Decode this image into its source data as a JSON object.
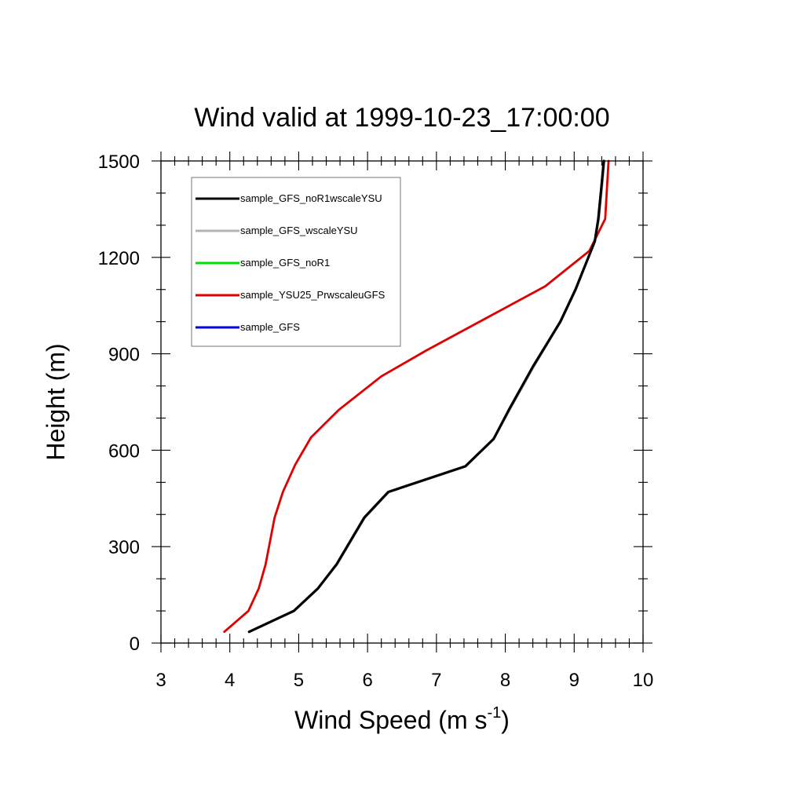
{
  "chart_data": {
    "type": "line",
    "title": "Wind valid at 1999-10-23_17:00:00",
    "xlabel": "Wind Speed (m s",
    "xlabel_sup": "-1",
    "xlabel_end": ")",
    "ylabel": "Height (m)",
    "xlim": [
      3,
      10
    ],
    "ylim": [
      0,
      1500
    ],
    "x_ticks": [
      "3",
      "4",
      "5",
      "6",
      "7",
      "8",
      "9",
      "10"
    ],
    "y_ticks": [
      "0",
      "300",
      "600",
      "900",
      "1200",
      "1500"
    ],
    "grid": false,
    "legend_position": "top-left",
    "series": [
      {
        "name": "sample_GFS_noR1wscaleYSU",
        "color": "#000000",
        "points": [
          [
            4.28,
            35
          ],
          [
            4.93,
            100
          ],
          [
            5.28,
            170
          ],
          [
            5.55,
            245
          ],
          [
            5.95,
            390
          ],
          [
            6.3,
            470
          ],
          [
            7.42,
            550
          ],
          [
            7.83,
            635
          ],
          [
            8.05,
            725
          ],
          [
            8.4,
            860
          ],
          [
            8.8,
            1000
          ],
          [
            9.02,
            1100
          ],
          [
            9.3,
            1250
          ],
          [
            9.35,
            1320
          ],
          [
            9.4,
            1430
          ],
          [
            9.43,
            1500
          ]
        ]
      },
      {
        "name": "sample_GFS_wscaleYSU",
        "color": "#b4b4b4",
        "points": [
          [
            4.28,
            35
          ],
          [
            4.93,
            100
          ],
          [
            5.28,
            170
          ],
          [
            5.56,
            245
          ],
          [
            5.96,
            390
          ],
          [
            6.31,
            470
          ],
          [
            7.43,
            550
          ],
          [
            7.84,
            638
          ],
          [
            8.07,
            728
          ],
          [
            8.42,
            862
          ],
          [
            8.81,
            1002
          ],
          [
            9.03,
            1102
          ],
          [
            9.3,
            1250
          ],
          [
            9.36,
            1320
          ],
          [
            9.41,
            1430
          ],
          [
            9.44,
            1500
          ]
        ]
      },
      {
        "name": "sample_GFS_noR1",
        "color": "#00e000",
        "points": [
          [
            4.28,
            35
          ],
          [
            4.93,
            100
          ],
          [
            5.28,
            170
          ],
          [
            5.55,
            245
          ],
          [
            5.95,
            390
          ],
          [
            6.3,
            470
          ],
          [
            7.42,
            550
          ],
          [
            7.83,
            635
          ],
          [
            8.05,
            725
          ],
          [
            8.4,
            860
          ],
          [
            8.8,
            1000
          ],
          [
            9.02,
            1100
          ],
          [
            9.3,
            1250
          ],
          [
            9.35,
            1320
          ],
          [
            9.4,
            1430
          ],
          [
            9.43,
            1500
          ]
        ]
      },
      {
        "name": "sample_YSU25_PrwscaleuGFS",
        "color": "#e00000",
        "points": [
          [
            3.92,
            35
          ],
          [
            4.27,
            100
          ],
          [
            4.42,
            170
          ],
          [
            4.52,
            245
          ],
          [
            4.65,
            390
          ],
          [
            4.77,
            470
          ],
          [
            4.95,
            555
          ],
          [
            5.18,
            640
          ],
          [
            5.58,
            725
          ],
          [
            6.2,
            830
          ],
          [
            6.85,
            910
          ],
          [
            8.58,
            1110
          ],
          [
            9.22,
            1220
          ],
          [
            9.45,
            1320
          ],
          [
            9.48,
            1430
          ],
          [
            9.5,
            1500
          ]
        ]
      },
      {
        "name": "sample_GFS",
        "color": "#0000e0",
        "points": [
          [
            4.28,
            35
          ],
          [
            4.93,
            100
          ],
          [
            5.28,
            170
          ],
          [
            5.55,
            245
          ],
          [
            5.95,
            390
          ],
          [
            6.3,
            470
          ],
          [
            7.42,
            550
          ],
          [
            7.83,
            636
          ],
          [
            8.06,
            726
          ],
          [
            8.41,
            861
          ],
          [
            8.8,
            1001
          ],
          [
            9.02,
            1101
          ],
          [
            9.3,
            1250
          ],
          [
            9.35,
            1320
          ],
          [
            9.4,
            1430
          ],
          [
            9.43,
            1500
          ]
        ]
      }
    ]
  }
}
